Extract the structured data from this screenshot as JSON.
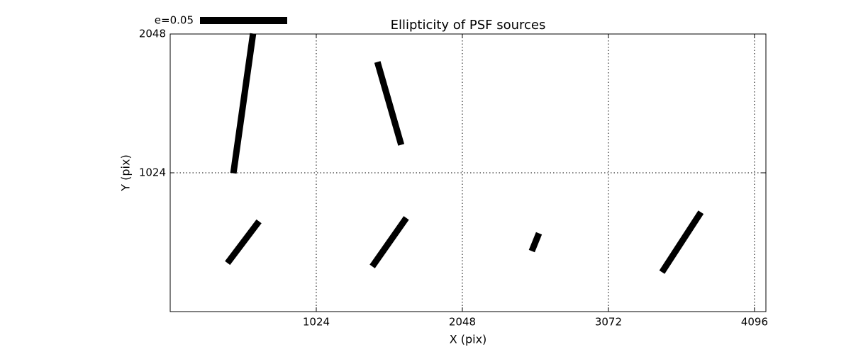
{
  "chart_data": {
    "type": "whisker",
    "title": "Ellipticity of PSF sources",
    "xlabel": "X (pix)",
    "ylabel": "Y (pix)",
    "x": [
      512,
      1536,
      512,
      1536,
      2560,
      3584
    ],
    "y": [
      1536,
      1536,
      512,
      512,
      512,
      512
    ],
    "e": [
      0.081,
      0.0495,
      0.03,
      0.034,
      0.011,
      0.041
    ],
    "angle": [
      82,
      -74,
      53,
      55,
      68,
      57
    ],
    "color": "#000000",
    "key": {
      "label": "e=0.05",
      "value": 0.05
    },
    "xlim": [
      0,
      4176
    ],
    "ylim": [
      0,
      2048
    ],
    "xticks": [
      1024,
      2048,
      3072,
      4096
    ],
    "yticks": [
      1024,
      2048
    ],
    "grid": true
  }
}
